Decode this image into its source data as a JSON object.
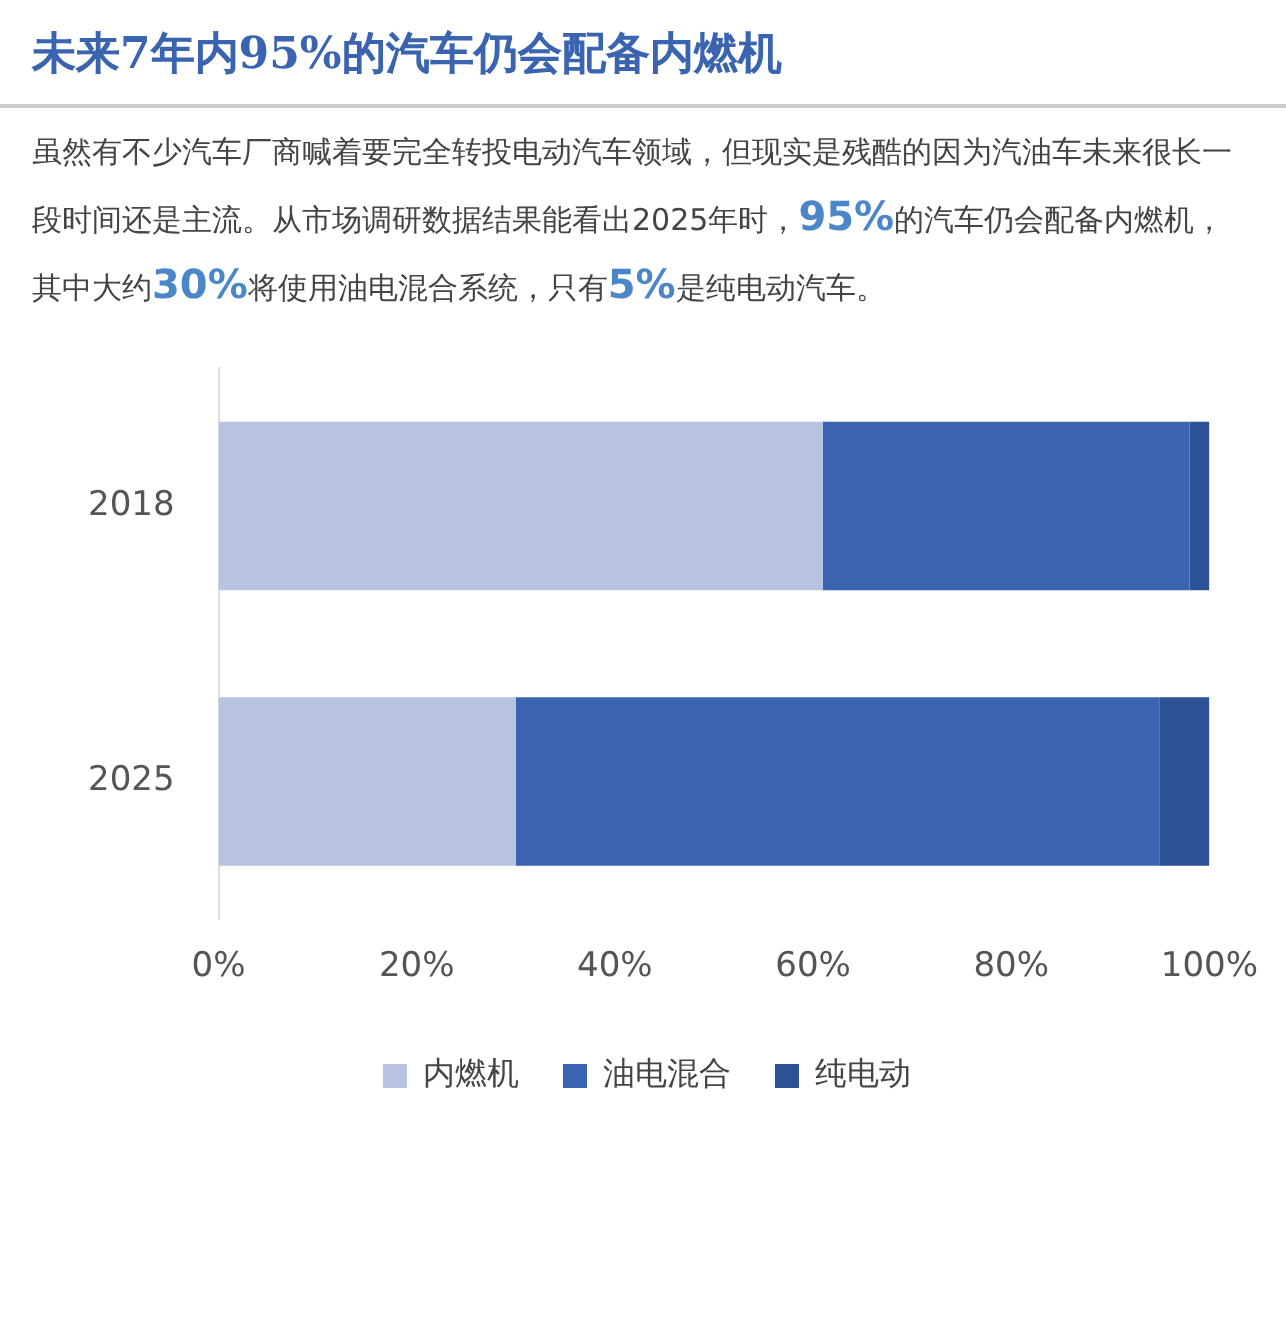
{
  "chart_data": {
    "type": "bar",
    "orientation": "horizontal",
    "stacked": true,
    "title": "未来7年内95%的汽车仍会配备内燃机",
    "subtitle": "虽然有不少汽车厂商喊着要完全转投电动汽车领域，但现实是残酷的因为汽油车未来很长一段时间还是主流。从市场调研数据结果能看出2025年时，95%的汽车仍会配备内燃机，其中大约30%将使用油电混合系统，只有5%是纯电动汽车。",
    "categories": [
      "2018",
      "2025"
    ],
    "series": [
      {
        "name": "内燃机",
        "color": "#b7c3e0",
        "values": [
          61,
          30
        ]
      },
      {
        "name": "油电混合",
        "color": "#3a64b0",
        "values": [
          37,
          65
        ]
      },
      {
        "name": "纯电动",
        "color": "#2d5195",
        "values": [
          2,
          5
        ]
      }
    ],
    "xlim": [
      0,
      100
    ],
    "xticks": [
      {
        "value": 0,
        "label": "0%"
      },
      {
        "value": 20,
        "label": "20%"
      },
      {
        "value": 40,
        "label": "40%"
      },
      {
        "value": 60,
        "label": "60%"
      },
      {
        "value": 80,
        "label": "80%"
      },
      {
        "value": 100,
        "label": "100%"
      }
    ],
    "grid": false,
    "legend": "bottom"
  }
}
